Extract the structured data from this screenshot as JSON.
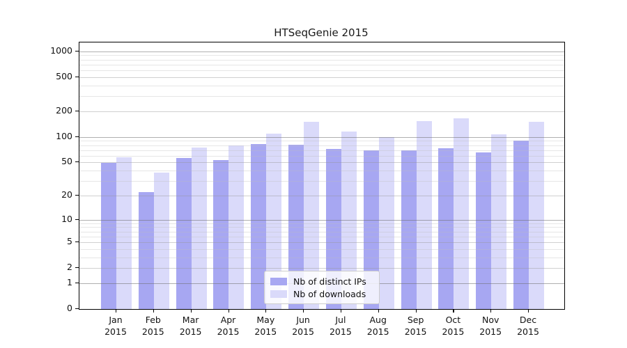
{
  "chart_data": {
    "type": "bar",
    "title": "HTSeqGenie 2015",
    "xlabel": "",
    "ylabel": "",
    "year_label": "2015",
    "categories": [
      "Jan",
      "Feb",
      "Mar",
      "Apr",
      "May",
      "Jun",
      "Jul",
      "Aug",
      "Sep",
      "Oct",
      "Nov",
      "Dec"
    ],
    "series": [
      {
        "name": "Nb of distinct IPs",
        "color": "#a7a7f2",
        "values": [
          49,
          22,
          56,
          53,
          82,
          81,
          72,
          69,
          70,
          74,
          66,
          90
        ]
      },
      {
        "name": "Nb of downloads",
        "color": "#dadafa",
        "values": [
          57,
          38,
          75,
          80,
          110,
          151,
          116,
          100,
          154,
          164,
          107,
          150
        ]
      }
    ],
    "y_axis": {
      "scale": "log1p",
      "ticks": [
        0,
        1,
        2,
        5,
        10,
        20,
        50,
        100,
        200,
        500,
        1000
      ],
      "major_gridlines": [
        1,
        10,
        100,
        1000
      ],
      "mid_gridlines": [
        2,
        5,
        20,
        50,
        200,
        500
      ],
      "minor_gridlines": [
        3,
        4,
        6,
        7,
        8,
        9,
        30,
        40,
        60,
        70,
        80,
        90,
        300,
        400,
        600,
        700,
        800,
        900
      ],
      "ylim_top": 1250
    },
    "grid": true,
    "legend_position": "lower center",
    "colors": {
      "spine": "#000000",
      "text": "#111111",
      "background": "#ffffff"
    }
  }
}
